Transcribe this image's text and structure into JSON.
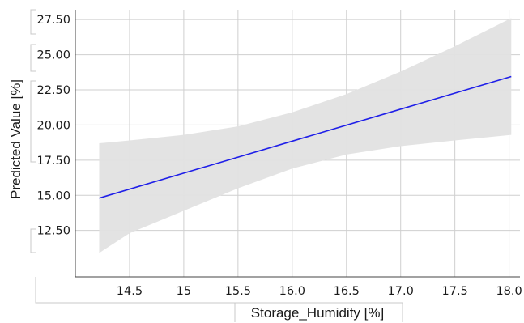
{
  "chart_data": {
    "type": "line",
    "xlabel": "Storage_Humidity [%]",
    "ylabel": "Predicted Value [%]",
    "xlim": [
      14.0,
      18.1
    ],
    "ylim": [
      9.2,
      28.2
    ],
    "x_ticks": [
      14.5,
      15,
      15.5,
      16.0,
      16.5,
      17.0,
      17.5,
      18.0
    ],
    "x_tick_labels": [
      "14.5",
      "15",
      "15.5",
      "16.0",
      "16.5",
      "17.0",
      "17.5",
      "18.0"
    ],
    "y_ticks": [
      12.5,
      15.0,
      17.5,
      20.0,
      22.5,
      25.0,
      27.5
    ],
    "y_tick_labels": [
      "12.50",
      "15.00",
      "17.50",
      "20.00",
      "22.50",
      "25.00",
      "27.50"
    ],
    "grid": true,
    "series": [
      {
        "values_x": [
          14.22,
          18.02
        ],
        "values_y": [
          14.8,
          23.45
        ],
        "color": "#1f1fe8"
      }
    ],
    "confidence_band": {
      "color": "#e2e2e2",
      "x": [
        14.22,
        14.5,
        15.0,
        15.5,
        16.0,
        16.5,
        17.0,
        17.5,
        18.02
      ],
      "lower": [
        10.9,
        12.3,
        13.9,
        15.5,
        16.9,
        17.9,
        18.5,
        18.9,
        19.3
      ],
      "upper": [
        18.7,
        18.9,
        19.3,
        19.9,
        20.9,
        22.2,
        23.8,
        25.6,
        27.6
      ]
    }
  }
}
